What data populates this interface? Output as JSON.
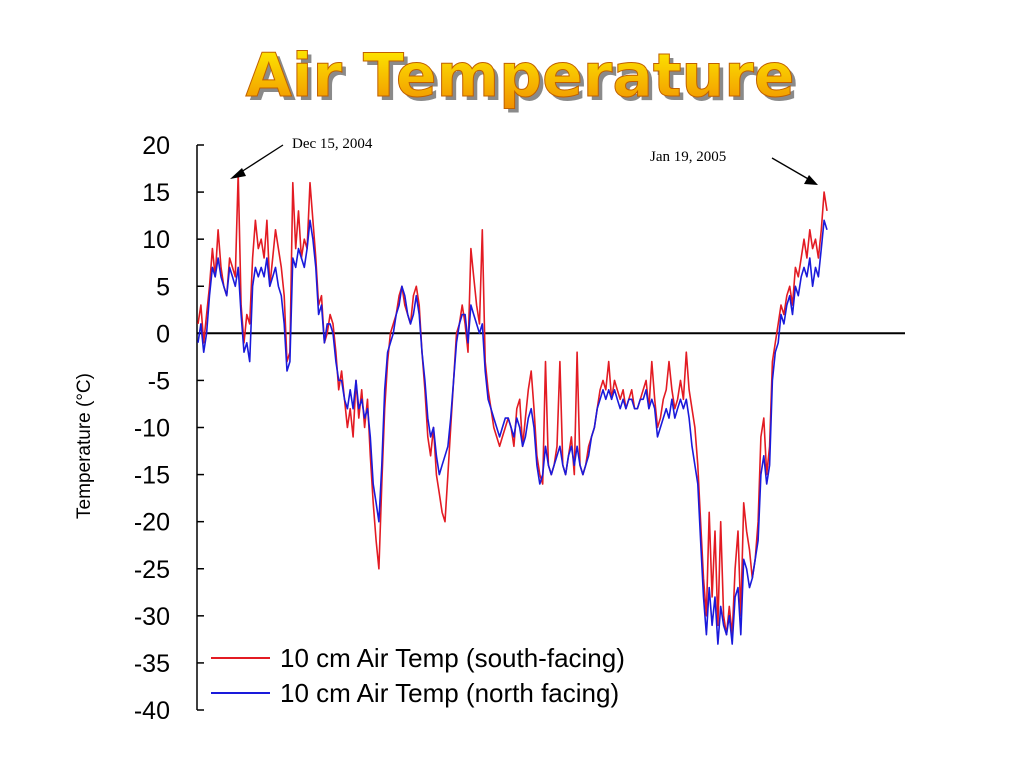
{
  "slide": {
    "title": "Air Temperature"
  },
  "chart_data": {
    "type": "line",
    "title": "Air Temperature",
    "xlabel": "",
    "ylabel": "Temperature (°C)",
    "ylim": [
      -40,
      20
    ],
    "yticks": [
      "20",
      "15",
      "10",
      "5",
      "0",
      "-5",
      "-10",
      "-15",
      "-20",
      "-25",
      "-30",
      "-35",
      "-40"
    ],
    "x_range": [
      "Dec 15, 2004",
      "Jan 19, 2005"
    ],
    "grid": false,
    "zero_line": true,
    "legend_position": "bottom-left",
    "annotations": [
      {
        "text": "Dec 15, 2004",
        "points_to": "start"
      },
      {
        "text": "Jan 19, 2005",
        "points_to": "end"
      }
    ],
    "colors": {
      "south": "#e31b23",
      "north": "#1a1adb"
    },
    "series": [
      {
        "name": "10 cm Air Temp (south-facing)",
        "color": "#e31b23",
        "values": [
          1,
          3,
          -1,
          2,
          5,
          9,
          6,
          11,
          7,
          5,
          4,
          8,
          7,
          6,
          17,
          3,
          -1,
          2,
          1,
          8,
          12,
          9,
          10,
          8,
          12,
          5,
          8,
          11,
          9,
          7,
          4,
          -3,
          -2,
          16,
          9,
          13,
          8,
          10,
          9,
          16,
          12,
          8,
          3,
          4,
          -1,
          0,
          2,
          1,
          -2,
          -6,
          -4,
          -7,
          -10,
          -8,
          -11,
          -5,
          -9,
          -6,
          -10,
          -7,
          -13,
          -18,
          -22,
          -25,
          -16,
          -8,
          -3,
          0,
          1,
          2,
          4,
          5,
          3,
          2,
          1,
          4,
          5,
          3,
          -2,
          -6,
          -11,
          -13,
          -10,
          -15,
          -17,
          -19,
          -20,
          -15,
          -10,
          -5,
          0,
          1,
          3,
          1,
          -2,
          9,
          6,
          3,
          1,
          11,
          -3,
          -6,
          -8,
          -10,
          -11,
          -12,
          -11,
          -10,
          -9,
          -10,
          -12,
          -8,
          -7,
          -12,
          -9,
          -6,
          -4,
          -8,
          -13,
          -15,
          -16,
          -3,
          -14,
          -15,
          -14,
          -12,
          -3,
          -14,
          -15,
          -13,
          -11,
          -15,
          -2,
          -14,
          -15,
          -14,
          -12,
          -11,
          -10,
          -8,
          -6,
          -5,
          -6,
          -3,
          -7,
          -5,
          -6,
          -7,
          -6,
          -8,
          -7,
          -6,
          -8,
          -8,
          -7,
          -6,
          -5,
          -8,
          -3,
          -7,
          -10,
          -9,
          -7,
          -6,
          -3,
          -6,
          -8,
          -7,
          -5,
          -7,
          -2,
          -6,
          -8,
          -10,
          -14,
          -20,
          -26,
          -30,
          -19,
          -28,
          -21,
          -31,
          -20,
          -30,
          -32,
          -29,
          -32,
          -25,
          -21,
          -30,
          -18,
          -21,
          -23,
          -26,
          -24,
          -20,
          -11,
          -9,
          -15,
          -12,
          -3,
          -1,
          1,
          3,
          2,
          4,
          5,
          3,
          7,
          6,
          8,
          10,
          8,
          11,
          9,
          10,
          8,
          11,
          15,
          13
        ]
      },
      {
        "name": "10 cm Air Temp (north facing)",
        "color": "#1a1adb",
        "values": [
          -1,
          1,
          -2,
          0,
          4,
          7,
          6,
          8,
          6,
          5,
          4,
          7,
          6,
          5,
          7,
          2,
          -2,
          -1,
          -3,
          5,
          7,
          6,
          7,
          6,
          8,
          5,
          6,
          7,
          5,
          4,
          1,
          -4,
          -3,
          8,
          7,
          9,
          8,
          7,
          9,
          12,
          10,
          7,
          2,
          3,
          -1,
          1,
          1,
          0,
          -3,
          -5,
          -5,
          -7,
          -8,
          -6,
          -8,
          -5,
          -8,
          -7,
          -9,
          -8,
          -11,
          -16,
          -18,
          -20,
          -14,
          -6,
          -2,
          -1,
          0,
          2,
          3,
          5,
          4,
          2,
          1,
          2,
          4,
          2,
          -2,
          -5,
          -9,
          -11,
          -10,
          -13,
          -15,
          -14,
          -13,
          -12,
          -9,
          -5,
          -1,
          1,
          2,
          2,
          -1,
          3,
          2,
          1,
          0,
          1,
          -4,
          -7,
          -8,
          -9,
          -10,
          -11,
          -10,
          -9,
          -9,
          -10,
          -11,
          -9,
          -10,
          -12,
          -11,
          -9,
          -8,
          -10,
          -14,
          -16,
          -15,
          -12,
          -14,
          -15,
          -14,
          -13,
          -12,
          -14,
          -15,
          -13,
          -12,
          -14,
          -12,
          -14,
          -15,
          -14,
          -13,
          -11,
          -10,
          -8,
          -7,
          -6,
          -7,
          -6,
          -7,
          -6,
          -7,
          -8,
          -7,
          -8,
          -7,
          -7,
          -8,
          -8,
          -7,
          -7,
          -6,
          -8,
          -7,
          -8,
          -11,
          -10,
          -9,
          -8,
          -9,
          -7,
          -9,
          -8,
          -7,
          -8,
          -7,
          -9,
          -12,
          -14,
          -16,
          -22,
          -28,
          -32,
          -27,
          -31,
          -28,
          -33,
          -29,
          -31,
          -32,
          -30,
          -33,
          -28,
          -27,
          -32,
          -24,
          -25,
          -27,
          -26,
          -24,
          -22,
          -15,
          -13,
          -16,
          -14,
          -5,
          -2,
          -1,
          2,
          1,
          3,
          4,
          2,
          5,
          4,
          6,
          7,
          6,
          8,
          5,
          7,
          6,
          9,
          12,
          11
        ]
      }
    ]
  }
}
